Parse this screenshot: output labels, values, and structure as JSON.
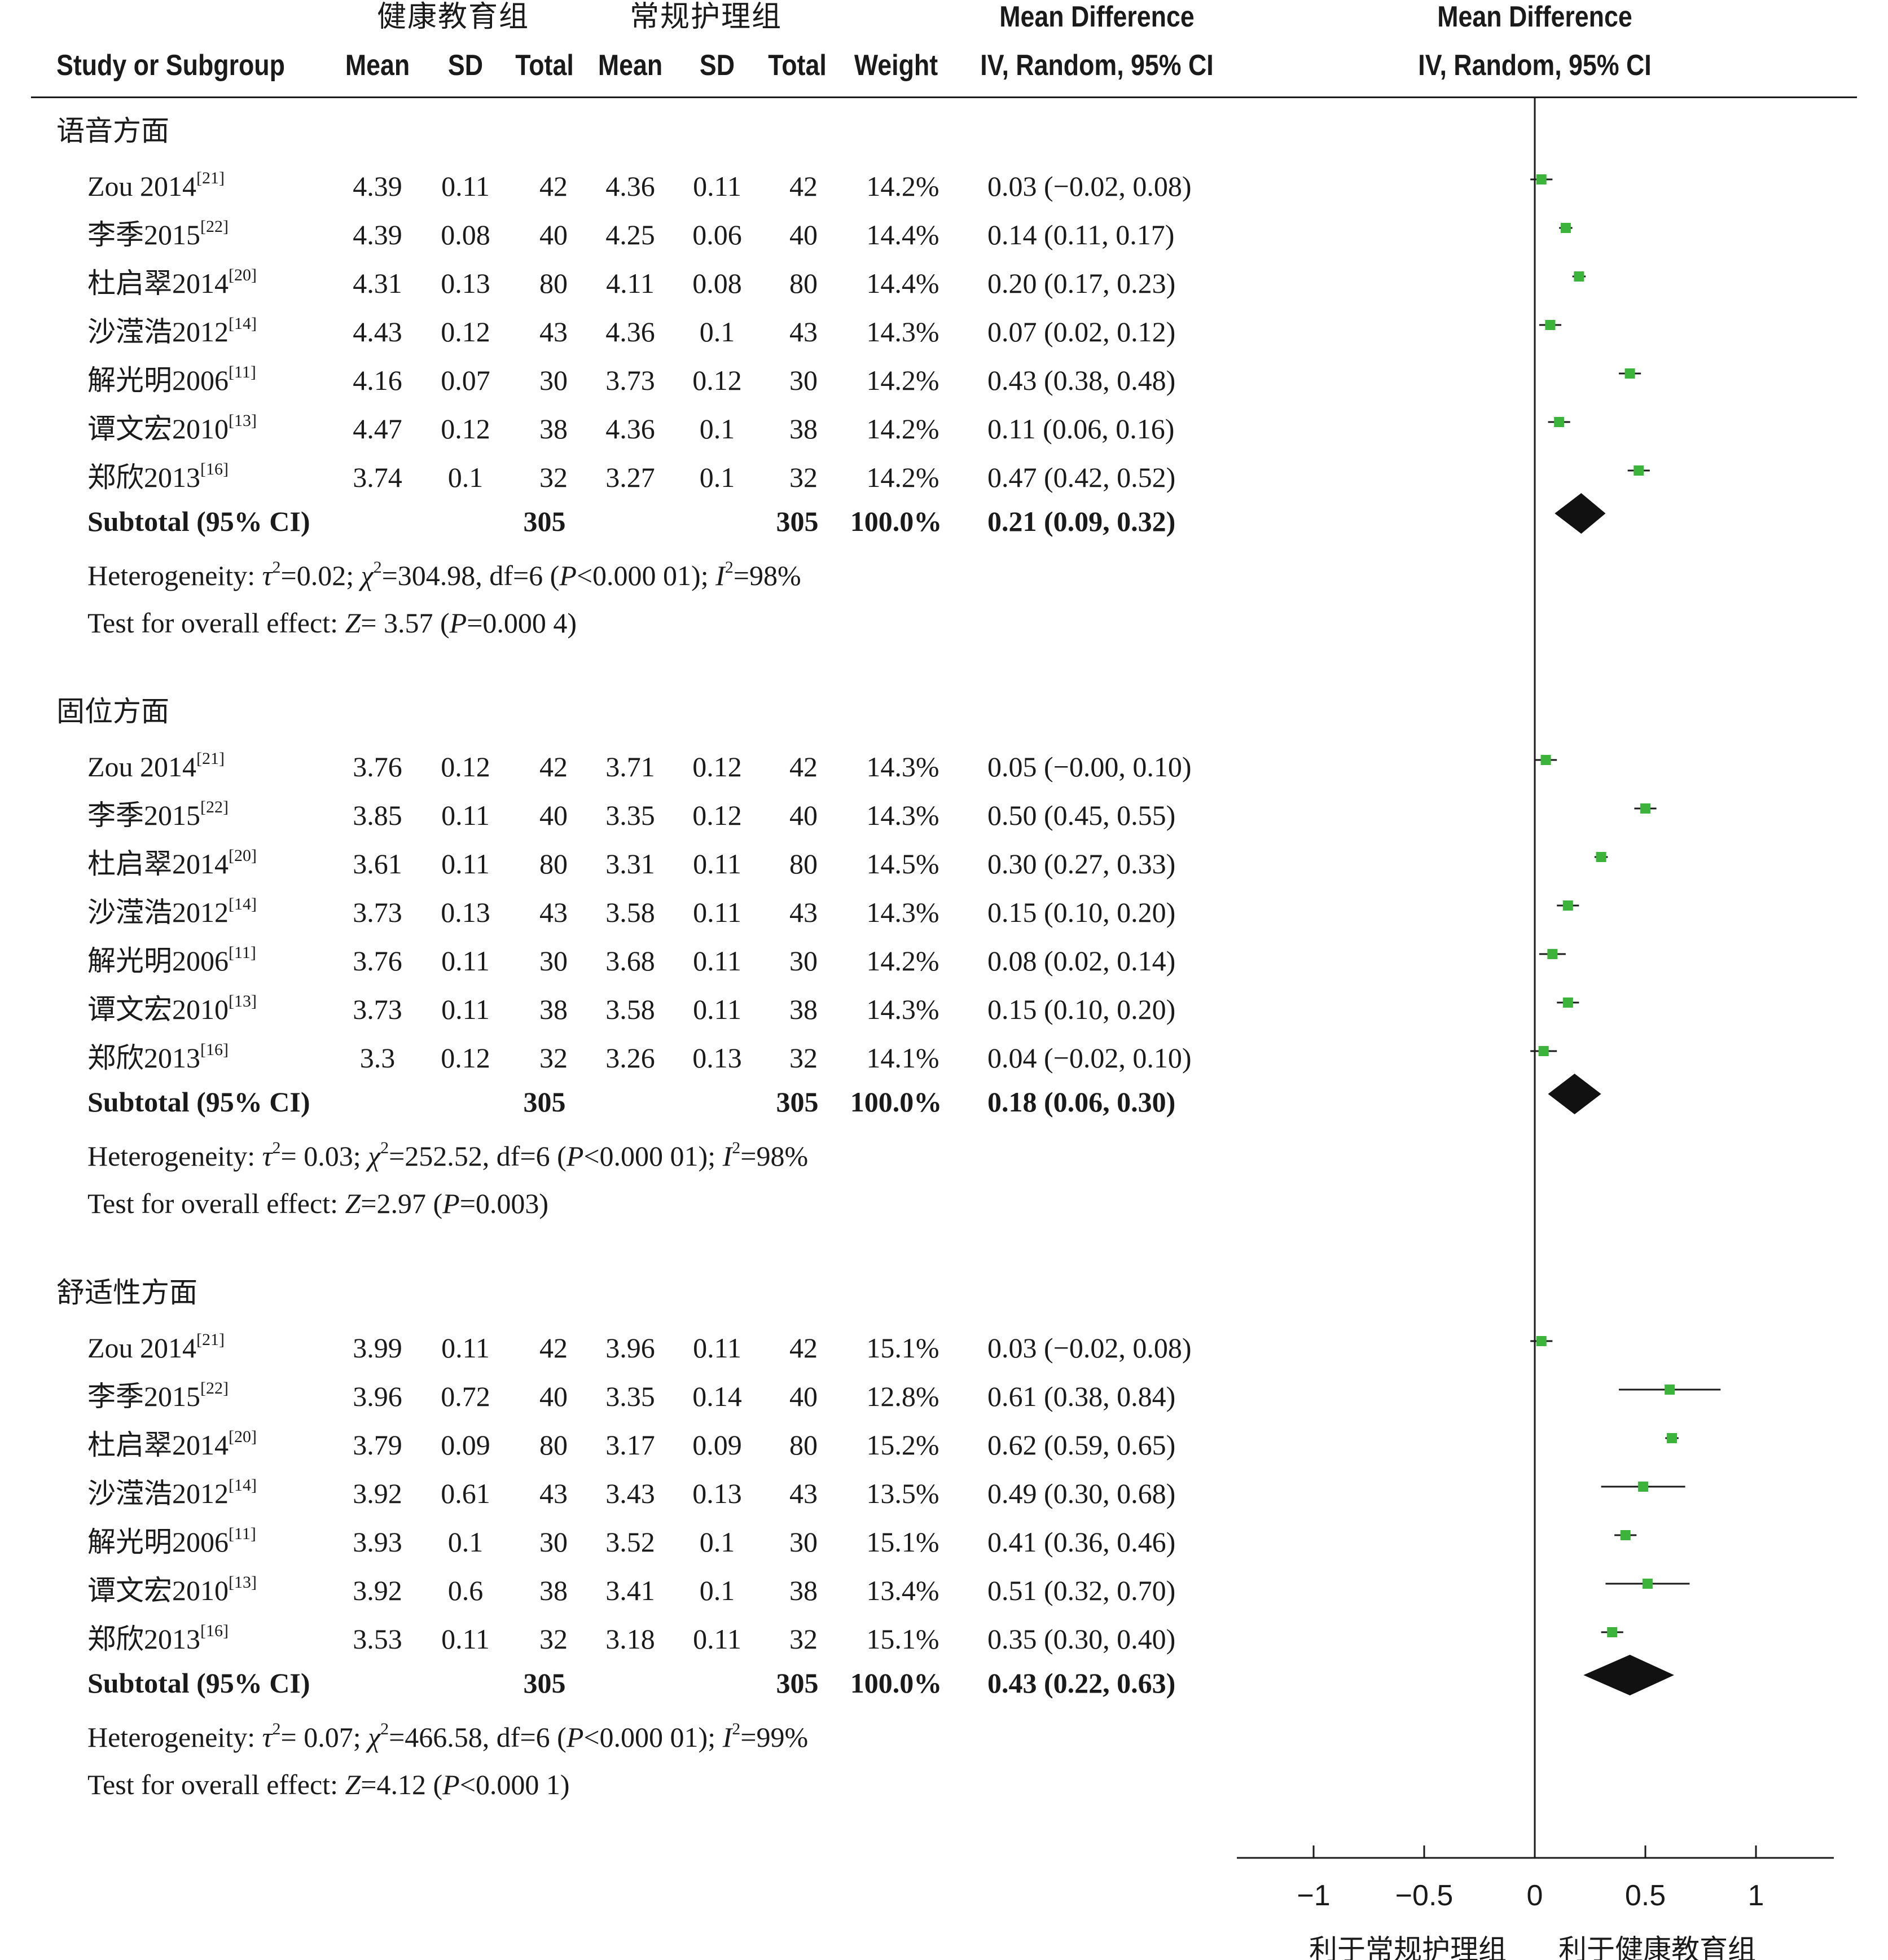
{
  "header": {
    "group1_label": "健康教育组",
    "group2_label": "常规护理组",
    "md_title": "Mean Difference",
    "md_subtitle": "IV, Random, 95% CI",
    "plot_title": "Mean Difference",
    "plot_subtitle": "IV, Random, 95% CI",
    "col_study": "Study or Subgroup",
    "col_mean1": "Mean",
    "col_sd1": "SD",
    "col_total1": "Total",
    "col_mean2": "Mean",
    "col_sd2": "SD",
    "col_total2": "Total",
    "col_weight": "Weight"
  },
  "axis": {
    "ticks": [
      "−1",
      "−0.5",
      "0",
      "0.5",
      "1"
    ],
    "favours_left": "利于常规护理组",
    "favours_right": "利于健康教育组"
  },
  "chart_data": {
    "type": "forest",
    "xlim": [
      -1.25,
      1.35
    ],
    "tick_values": [
      -1,
      -0.5,
      0,
      0.5,
      1
    ],
    "subgroups": [
      {
        "title": "语音方面",
        "studies": [
          {
            "name": "Zou 2014",
            "ref": "[21]",
            "mean1": "4.39",
            "sd1": "0.11",
            "n1": "42",
            "mean2": "4.36",
            "sd2": "0.11",
            "n2": "42",
            "weight": "14.2%",
            "ci_text": "0.03 (−0.02, 0.08)",
            "md": 0.03,
            "lo": -0.02,
            "hi": 0.08
          },
          {
            "name": "李季2015",
            "ref": "[22]",
            "mean1": "4.39",
            "sd1": "0.08",
            "n1": "40",
            "mean2": "4.25",
            "sd2": "0.06",
            "n2": "40",
            "weight": "14.4%",
            "ci_text": "0.14 (0.11, 0.17)",
            "md": 0.14,
            "lo": 0.11,
            "hi": 0.17
          },
          {
            "name": "杜启翠2014",
            "ref": "[20]",
            "mean1": "4.31",
            "sd1": "0.13",
            "n1": "80",
            "mean2": "4.11",
            "sd2": "0.08",
            "n2": "80",
            "weight": "14.4%",
            "ci_text": "0.20 (0.17, 0.23)",
            "md": 0.2,
            "lo": 0.17,
            "hi": 0.23
          },
          {
            "name": "沙滢浩2012",
            "ref": "[14]",
            "mean1": "4.43",
            "sd1": "0.12",
            "n1": "43",
            "mean2": "4.36",
            "sd2": "0.1",
            "n2": "43",
            "weight": "14.3%",
            "ci_text": "0.07 (0.02, 0.12)",
            "md": 0.07,
            "lo": 0.02,
            "hi": 0.12
          },
          {
            "name": "解光明2006",
            "ref": "[11]",
            "mean1": "4.16",
            "sd1": "0.07",
            "n1": "30",
            "mean2": "3.73",
            "sd2": "0.12",
            "n2": "30",
            "weight": "14.2%",
            "ci_text": "0.43 (0.38, 0.48)",
            "md": 0.43,
            "lo": 0.38,
            "hi": 0.48
          },
          {
            "name": "谭文宏2010",
            "ref": "[13]",
            "mean1": "4.47",
            "sd1": "0.12",
            "n1": "38",
            "mean2": "4.36",
            "sd2": "0.1",
            "n2": "38",
            "weight": "14.2%",
            "ci_text": "0.11 (0.06, 0.16)",
            "md": 0.11,
            "lo": 0.06,
            "hi": 0.16
          },
          {
            "name": "郑欣2013",
            "ref": "[16]",
            "mean1": "3.74",
            "sd1": "0.1",
            "n1": "32",
            "mean2": "3.27",
            "sd2": "0.1",
            "n2": "32",
            "weight": "14.2%",
            "ci_text": "0.47 (0.42, 0.52)",
            "md": 0.47,
            "lo": 0.42,
            "hi": 0.52
          }
        ],
        "subtotal": {
          "label": "Subtotal (95% CI)",
          "n1": "305",
          "n2": "305",
          "weight": "100.0%",
          "ci_text": "0.21 (0.09, 0.32)",
          "md": 0.21,
          "lo": 0.09,
          "hi": 0.32
        },
        "heterogeneity": {
          "a": "Heterogeneity: ",
          "tau": "τ",
          "b": "=0.02; ",
          "chi": "χ",
          "c": "=304.98, df=6 (",
          "p": "P",
          "d": "<0.000 01); ",
          "i": "I",
          "e": "=98%"
        },
        "overall": {
          "a": "Test for overall effect: ",
          "z": "Z",
          "b": "= 3.57 (",
          "p": "P",
          "c": "=0.000 4)"
        }
      },
      {
        "title": "固位方面",
        "studies": [
          {
            "name": "Zou 2014",
            "ref": "[21]",
            "mean1": "3.76",
            "sd1": "0.12",
            "n1": "42",
            "mean2": "3.71",
            "sd2": "0.12",
            "n2": "42",
            "weight": "14.3%",
            "ci_text": "0.05 (−0.00, 0.10)",
            "md": 0.05,
            "lo": 0.0,
            "hi": 0.1
          },
          {
            "name": "李季2015",
            "ref": "[22]",
            "mean1": "3.85",
            "sd1": "0.11",
            "n1": "40",
            "mean2": "3.35",
            "sd2": "0.12",
            "n2": "40",
            "weight": "14.3%",
            "ci_text": "0.50 (0.45, 0.55)",
            "md": 0.5,
            "lo": 0.45,
            "hi": 0.55
          },
          {
            "name": "杜启翠2014",
            "ref": "[20]",
            "mean1": "3.61",
            "sd1": "0.11",
            "n1": "80",
            "mean2": "3.31",
            "sd2": "0.11",
            "n2": "80",
            "weight": "14.5%",
            "ci_text": "0.30 (0.27, 0.33)",
            "md": 0.3,
            "lo": 0.27,
            "hi": 0.33
          },
          {
            "name": "沙滢浩2012",
            "ref": "[14]",
            "mean1": "3.73",
            "sd1": "0.13",
            "n1": "43",
            "mean2": "3.58",
            "sd2": "0.11",
            "n2": "43",
            "weight": "14.3%",
            "ci_text": "0.15 (0.10, 0.20)",
            "md": 0.15,
            "lo": 0.1,
            "hi": 0.2
          },
          {
            "name": "解光明2006",
            "ref": "[11]",
            "mean1": "3.76",
            "sd1": "0.11",
            "n1": "30",
            "mean2": "3.68",
            "sd2": "0.11",
            "n2": "30",
            "weight": "14.2%",
            "ci_text": "0.08 (0.02, 0.14)",
            "md": 0.08,
            "lo": 0.02,
            "hi": 0.14
          },
          {
            "name": "谭文宏2010",
            "ref": "[13]",
            "mean1": "3.73",
            "sd1": "0.11",
            "n1": "38",
            "mean2": "3.58",
            "sd2": "0.11",
            "n2": "38",
            "weight": "14.3%",
            "ci_text": "0.15 (0.10, 0.20)",
            "md": 0.15,
            "lo": 0.1,
            "hi": 0.2
          },
          {
            "name": "郑欣2013",
            "ref": "[16]",
            "mean1": "3.3",
            "sd1": "0.12",
            "n1": "32",
            "mean2": "3.26",
            "sd2": "0.13",
            "n2": "32",
            "weight": "14.1%",
            "ci_text": "0.04 (−0.02, 0.10)",
            "md": 0.04,
            "lo": -0.02,
            "hi": 0.1
          }
        ],
        "subtotal": {
          "label": "Subtotal (95% CI)",
          "n1": "305",
          "n2": "305",
          "weight": "100.0%",
          "ci_text": "0.18 (0.06, 0.30)",
          "md": 0.18,
          "lo": 0.06,
          "hi": 0.3
        },
        "heterogeneity": {
          "a": "Heterogeneity: ",
          "tau": "τ",
          "b": "= 0.03; ",
          "chi": "χ",
          "c": "=252.52, df=6 (",
          "p": "P",
          "d": "<0.000 01); ",
          "i": "I",
          "e": "=98%"
        },
        "overall": {
          "a": "Test for overall effect: ",
          "z": "Z",
          "b": "=2.97 (",
          "p": "P",
          "c": "=0.003)"
        }
      },
      {
        "title": "舒适性方面",
        "studies": [
          {
            "name": "Zou 2014",
            "ref": "[21]",
            "mean1": "3.99",
            "sd1": "0.11",
            "n1": "42",
            "mean2": "3.96",
            "sd2": "0.11",
            "n2": "42",
            "weight": "15.1%",
            "ci_text": "0.03 (−0.02, 0.08)",
            "md": 0.03,
            "lo": -0.02,
            "hi": 0.08
          },
          {
            "name": "李季2015",
            "ref": "[22]",
            "mean1": "3.96",
            "sd1": "0.72",
            "n1": "40",
            "mean2": "3.35",
            "sd2": "0.14",
            "n2": "40",
            "weight": "12.8%",
            "ci_text": "0.61 (0.38, 0.84)",
            "md": 0.61,
            "lo": 0.38,
            "hi": 0.84
          },
          {
            "name": "杜启翠2014",
            "ref": "[20]",
            "mean1": "3.79",
            "sd1": "0.09",
            "n1": "80",
            "mean2": "3.17",
            "sd2": "0.09",
            "n2": "80",
            "weight": "15.2%",
            "ci_text": "0.62 (0.59, 0.65)",
            "md": 0.62,
            "lo": 0.59,
            "hi": 0.65
          },
          {
            "name": "沙滢浩2012",
            "ref": "[14]",
            "mean1": "3.92",
            "sd1": "0.61",
            "n1": "43",
            "mean2": "3.43",
            "sd2": "0.13",
            "n2": "43",
            "weight": "13.5%",
            "ci_text": "0.49 (0.30, 0.68)",
            "md": 0.49,
            "lo": 0.3,
            "hi": 0.68
          },
          {
            "name": "解光明2006",
            "ref": "[11]",
            "mean1": "3.93",
            "sd1": "0.1",
            "n1": "30",
            "mean2": "3.52",
            "sd2": "0.1",
            "n2": "30",
            "weight": "15.1%",
            "ci_text": "0.41 (0.36, 0.46)",
            "md": 0.41,
            "lo": 0.36,
            "hi": 0.46
          },
          {
            "name": "谭文宏2010",
            "ref": "[13]",
            "mean1": "3.92",
            "sd1": "0.6",
            "n1": "38",
            "mean2": "3.41",
            "sd2": "0.1",
            "n2": "38",
            "weight": "13.4%",
            "ci_text": "0.51 (0.32, 0.70)",
            "md": 0.51,
            "lo": 0.32,
            "hi": 0.7
          },
          {
            "name": "郑欣2013",
            "ref": "[16]",
            "mean1": "3.53",
            "sd1": "0.11",
            "n1": "32",
            "mean2": "3.18",
            "sd2": "0.11",
            "n2": "32",
            "weight": "15.1%",
            "ci_text": "0.35 (0.30, 0.40)",
            "md": 0.35,
            "lo": 0.3,
            "hi": 0.4
          }
        ],
        "subtotal": {
          "label": "Subtotal (95% CI)",
          "n1": "305",
          "n2": "305",
          "weight": "100.0%",
          "ci_text": "0.43 (0.22, 0.63)",
          "md": 0.43,
          "lo": 0.22,
          "hi": 0.63
        },
        "heterogeneity": {
          "a": "Heterogeneity: ",
          "tau": "τ",
          "b": "= 0.07; ",
          "chi": "χ",
          "c": "=466.58, df=6 (",
          "p": "P",
          "d": "<0.000 01); ",
          "i": "I",
          "e": "=99%"
        },
        "overall": {
          "a": "Test for overall effect: ",
          "z": "Z",
          "b": "=4.12 (",
          "p": "P",
          "c": "<0.000 1)"
        }
      }
    ],
    "colors": {
      "study_marker": "#3cb43c",
      "pooled_diamond": "#111111",
      "lines": "#1a1a1a"
    }
  }
}
